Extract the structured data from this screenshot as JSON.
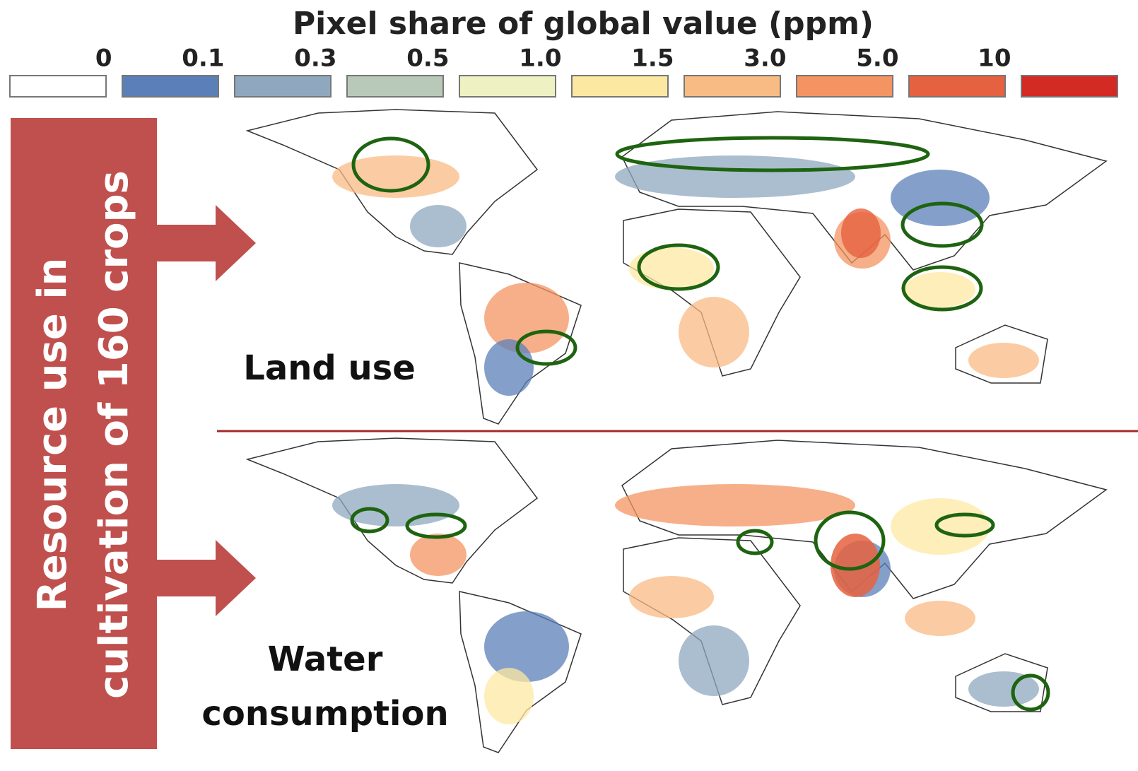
{
  "legend": {
    "title": "Pixel share of global value (ppm)",
    "labels": [
      "0",
      "0.1",
      "0.3",
      "0.5",
      "1.0",
      "1.5",
      "3.0",
      "5.0",
      "10"
    ],
    "colors": [
      "#ffffff",
      "#5b80b8",
      "#8fa8bf",
      "#b9c9b9",
      "#eef1c2",
      "#fde8a2",
      "#f9bb84",
      "#f49462",
      "#e6613f",
      "#d42a24"
    ]
  },
  "side_label": {
    "lines": [
      "Resource use in",
      "cultivation of 160 crops"
    ]
  },
  "panels": [
    {
      "label_lines": [
        "Land use"
      ]
    },
    {
      "label_lines": [
        "Water",
        "consumption"
      ]
    }
  ]
}
